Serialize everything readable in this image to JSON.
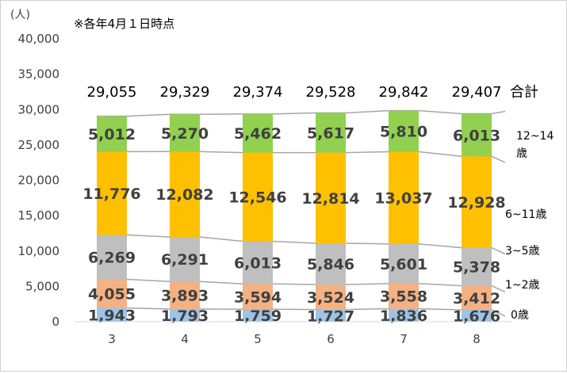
{
  "chart_data": {
    "type": "bar",
    "stacked": true,
    "unit_label": "(人)",
    "note": "※各年4月１日時点",
    "categories": [
      "3",
      "4",
      "5",
      "6",
      "7",
      "8"
    ],
    "series": [
      {
        "name": "0歳",
        "color": "#9dc3e6",
        "values": [
          1943,
          1793,
          1759,
          1727,
          1836,
          1676
        ]
      },
      {
        "name": "1~2歳",
        "color": "#f4b183",
        "values": [
          4055,
          3893,
          3594,
          3524,
          3558,
          3412
        ]
      },
      {
        "name": "3~5歳",
        "color": "#bfbfbf",
        "values": [
          6269,
          6291,
          6013,
          5846,
          5601,
          5378
        ]
      },
      {
        "name": "6~11歳",
        "color": "#ffc000",
        "values": [
          11776,
          12082,
          12546,
          12814,
          13037,
          12928
        ]
      },
      {
        "name": "12~14歳",
        "color": "#92d050",
        "values": [
          5012,
          5270,
          5462,
          5617,
          5810,
          6013
        ]
      }
    ],
    "totals_label": "合計",
    "totals": [
      29055,
      29329,
      29374,
      29528,
      29842,
      29407
    ],
    "ylim": [
      0,
      40000
    ],
    "yticks": [
      "0",
      "5,000",
      "10,000",
      "15,000",
      "20,000",
      "25,000",
      "30,000",
      "35,000",
      "40,000"
    ],
    "grid": false
  }
}
